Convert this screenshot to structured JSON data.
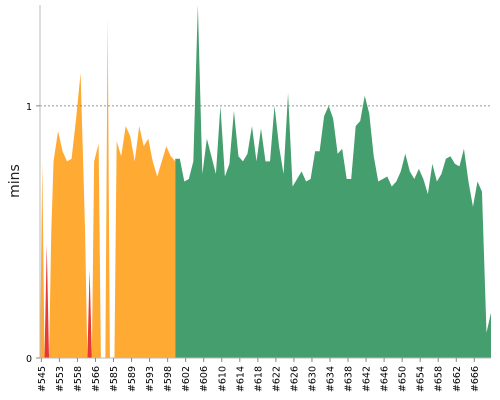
{
  "chart_data": {
    "type": "area",
    "title": "",
    "xlabel": "",
    "ylabel": "mins",
    "ylim": [
      0,
      1.4
    ],
    "y_ticks": [
      {
        "value": 0,
        "label": "0"
      },
      {
        "value": 1,
        "label": "1"
      }
    ],
    "reference_line": {
      "value": 1,
      "style": "dashed"
    },
    "x_tick_labels": [
      "#545",
      "#553",
      "#558",
      "#566",
      "#585",
      "#589",
      "#593",
      "#598",
      "#602",
      "#606",
      "#610",
      "#614",
      "#618",
      "#622",
      "#626",
      "#630",
      "#634",
      "#638",
      "#642",
      "#646",
      "#650",
      "#654",
      "#658",
      "#662",
      "#666"
    ],
    "x_tick_positions": [
      0.3,
      4.3,
      8.3,
      12.3,
      16.3,
      20.3,
      24.3,
      28.3,
      32.3,
      36.3,
      40.3,
      44.3,
      48.3,
      52.3,
      56.3,
      60.3,
      64.3,
      68.3,
      72.3,
      76.3,
      80.3,
      84.3,
      88.3,
      92.3,
      96.3
    ],
    "x_range": [
      0,
      100
    ],
    "series": [
      {
        "status": "failed",
        "color": "#e53935",
        "points": [
          [
            1,
            0.0
          ],
          [
            1.5,
            0.45
          ],
          [
            2,
            0.0
          ],
          [
            10.5,
            0.0
          ],
          [
            11,
            0.35
          ],
          [
            11.5,
            0.0
          ]
        ]
      },
      {
        "status": "unstable",
        "color": "#ffaa33",
        "points": [
          [
            0,
            0.0
          ],
          [
            0.5,
            0.78
          ],
          [
            1,
            0.0
          ],
          [
            2,
            0.0
          ],
          [
            2.5,
            0.5
          ],
          [
            3,
            0.78
          ],
          [
            4,
            0.9
          ],
          [
            5,
            0.82
          ],
          [
            6,
            0.78
          ],
          [
            7,
            0.79
          ],
          [
            8,
            0.95
          ],
          [
            9,
            1.13
          ],
          [
            10,
            0.5
          ],
          [
            10.5,
            0.0
          ],
          [
            11.5,
            0.0
          ],
          [
            12,
            0.78
          ],
          [
            13,
            0.85
          ],
          [
            13.5,
            0.0
          ],
          [
            14.5,
            0.0
          ],
          [
            15,
            1.35
          ],
          [
            15.5,
            0.0
          ],
          [
            16.5,
            0.0
          ],
          [
            17,
            0.86
          ],
          [
            18,
            0.8
          ],
          [
            19,
            0.92
          ],
          [
            20,
            0.88
          ],
          [
            21,
            0.78
          ],
          [
            22,
            0.92
          ],
          [
            23,
            0.84
          ],
          [
            24,
            0.87
          ],
          [
            25,
            0.78
          ],
          [
            26,
            0.72
          ],
          [
            27,
            0.78
          ],
          [
            28,
            0.84
          ],
          [
            29,
            0.8
          ],
          [
            30,
            0.78
          ]
        ]
      },
      {
        "status": "success",
        "color": "#459e6d",
        "points": [
          [
            30,
            0.79
          ],
          [
            31,
            0.79
          ],
          [
            32,
            0.7
          ],
          [
            33,
            0.71
          ],
          [
            34,
            0.78
          ],
          [
            35,
            1.4
          ],
          [
            36,
            0.73
          ],
          [
            37,
            0.87
          ],
          [
            38,
            0.8
          ],
          [
            39,
            0.73
          ],
          [
            40,
            1.0
          ],
          [
            41,
            0.72
          ],
          [
            42,
            0.77
          ],
          [
            43,
            0.98
          ],
          [
            44,
            0.8
          ],
          [
            45,
            0.78
          ],
          [
            46,
            0.81
          ],
          [
            47,
            0.92
          ],
          [
            48,
            0.78
          ],
          [
            49,
            0.91
          ],
          [
            50,
            0.78
          ],
          [
            51,
            0.78
          ],
          [
            52,
            1.0
          ],
          [
            53,
            0.84
          ],
          [
            54,
            0.73
          ],
          [
            55,
            1.05
          ],
          [
            56,
            0.68
          ],
          [
            57,
            0.71
          ],
          [
            58,
            0.74
          ],
          [
            59,
            0.7
          ],
          [
            60,
            0.71
          ],
          [
            61,
            0.82
          ],
          [
            62,
            0.82
          ],
          [
            63,
            0.96
          ],
          [
            64,
            1.0
          ],
          [
            65,
            0.95
          ],
          [
            66,
            0.81
          ],
          [
            67,
            0.83
          ],
          [
            68,
            0.71
          ],
          [
            69,
            0.71
          ],
          [
            70,
            0.92
          ],
          [
            71,
            0.94
          ],
          [
            72,
            1.04
          ],
          [
            73,
            0.97
          ],
          [
            74,
            0.8
          ],
          [
            75,
            0.7
          ],
          [
            76,
            0.71
          ],
          [
            77,
            0.72
          ],
          [
            78,
            0.68
          ],
          [
            79,
            0.7
          ],
          [
            80,
            0.74
          ],
          [
            81,
            0.81
          ],
          [
            82,
            0.74
          ],
          [
            83,
            0.71
          ],
          [
            84,
            0.75
          ],
          [
            85,
            0.71
          ],
          [
            86,
            0.65
          ],
          [
            87,
            0.77
          ],
          [
            88,
            0.7
          ],
          [
            89,
            0.73
          ],
          [
            90,
            0.79
          ],
          [
            91,
            0.8
          ],
          [
            92,
            0.77
          ],
          [
            93,
            0.76
          ],
          [
            94,
            0.83
          ],
          [
            95,
            0.7
          ],
          [
            96,
            0.6
          ],
          [
            97,
            0.7
          ],
          [
            98,
            0.66
          ],
          [
            99,
            0.1
          ],
          [
            100,
            0.18
          ]
        ]
      }
    ]
  }
}
